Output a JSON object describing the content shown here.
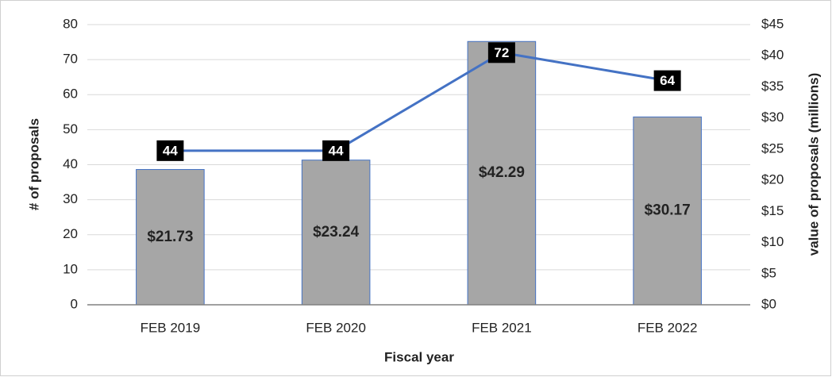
{
  "chart_data": {
    "type": "combo",
    "categories": [
      "FEB 2019",
      "FEB 2020",
      "FEB 2021",
      "FEB 2022"
    ],
    "series": [
      {
        "type": "bar",
        "axis": "y2",
        "color": "#a6a6a6",
        "values": [
          21.73,
          23.24,
          42.29,
          30.17
        ],
        "value_labels": [
          "$21.73",
          "$23.24",
          "$42.29",
          "$30.17"
        ]
      },
      {
        "type": "line",
        "axis": "y",
        "color": "#4472c4",
        "values": [
          44,
          44,
          72,
          64
        ]
      }
    ],
    "x_label": "Fiscal year",
    "y_label": "# of proposals",
    "y2_label": "value of proposals (millions)",
    "ylim": [
      0,
      80
    ],
    "yticks": [
      0,
      10,
      20,
      30,
      40,
      50,
      60,
      70,
      80
    ],
    "y2lim": [
      0,
      45
    ],
    "y2ticks": [
      {
        "value": 0,
        "label": "$0"
      },
      {
        "value": 5,
        "label": "$5"
      },
      {
        "value": 10,
        "label": "$10"
      },
      {
        "value": 15,
        "label": "$15"
      },
      {
        "value": 20,
        "label": "$20"
      },
      {
        "value": 25,
        "label": "$25"
      },
      {
        "value": 30,
        "label": "$30"
      },
      {
        "value": 35,
        "label": "$35"
      },
      {
        "value": 40,
        "label": "$40"
      },
      {
        "value": 45,
        "label": "$45"
      }
    ],
    "grid": true
  }
}
